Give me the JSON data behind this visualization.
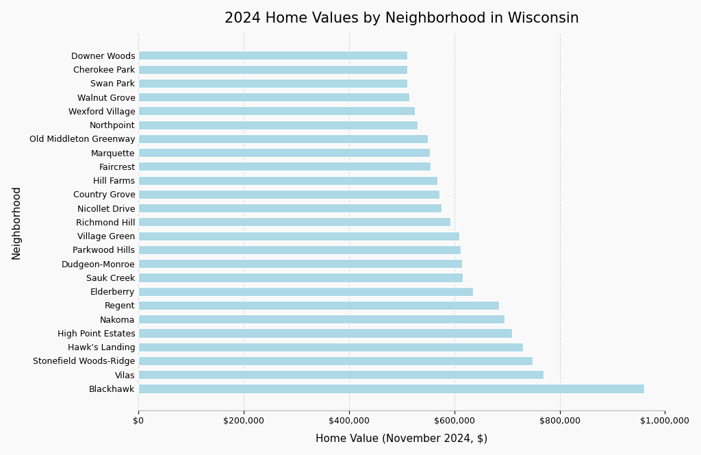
{
  "title": "2024 Home Values by Neighborhood in Wisconsin",
  "xlabel": "Home Value (November 2024, $)",
  "ylabel": "Neighborhood",
  "bar_color": "#add8e6",
  "background_color": "#f9f9f9",
  "xlim": [
    0,
    1000000
  ],
  "neighborhoods": [
    "Blackhawk",
    "Vilas",
    "Stonefield Woods-Ridge",
    "Hawk's Landing",
    "High Point Estates",
    "Nakoma",
    "Regent",
    "Elderberry",
    "Sauk Creek",
    "Dudgeon-Monroe",
    "Parkwood Hills",
    "Village Green",
    "Richmond Hill",
    "Nicollet Drive",
    "Country Grove",
    "Hill Farms",
    "Faircrest",
    "Marquette",
    "Old Middleton Greenway",
    "Northpoint",
    "Wexford Village",
    "Walnut Grove",
    "Swan Park",
    "Cherokee Park",
    "Downer Woods"
  ],
  "values": [
    960000,
    770000,
    748000,
    730000,
    710000,
    695000,
    685000,
    635000,
    616000,
    614000,
    612000,
    610000,
    592000,
    575000,
    572000,
    568000,
    555000,
    553000,
    550000,
    530000,
    525000,
    515000,
    510000,
    510000,
    510000
  ],
  "title_fontsize": 15,
  "axis_label_fontsize": 11,
  "tick_label_fontsize": 9,
  "grid_color": "#cccccc",
  "spine_color": "#aaaaaa"
}
